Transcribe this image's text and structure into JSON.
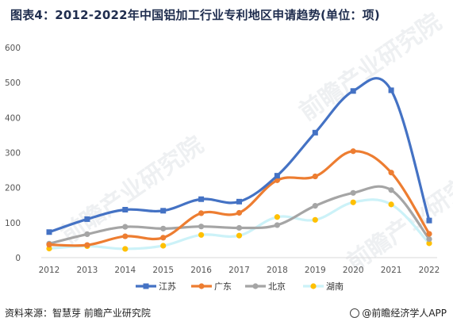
{
  "title": "图表4：2012-2022年中国铝加工行业专利地区申请趋势(单位：项)",
  "source": "资料来源：智慧芽 前瞻产业研究院",
  "brand": "@前瞻经济学人APP",
  "watermark": "前瞻产业研究院",
  "chart_data": {
    "type": "line",
    "title": "图表4：2012-2022年中国铝加工行业专利地区申请趋势(单位：项)",
    "categories": [
      "2012",
      "2013",
      "2014",
      "2015",
      "2016",
      "2017",
      "2018",
      "2019",
      "2020",
      "2021",
      "2022"
    ],
    "ylim": [
      0,
      600
    ],
    "yticks": [
      0,
      100,
      200,
      300,
      400,
      500,
      600
    ],
    "grid": false,
    "legend_position": "bottom",
    "smooth": true,
    "series": [
      {
        "name": "江苏",
        "color": "#4472c4",
        "marker": "square",
        "values": [
          73,
          110,
          137,
          134,
          167,
          160,
          234,
          357,
          476,
          478,
          106
        ]
      },
      {
        "name": "广东",
        "color": "#ed7d31",
        "marker": "circle",
        "values": [
          37,
          36,
          61,
          57,
          127,
          128,
          221,
          232,
          304,
          243,
          68
        ]
      },
      {
        "name": "北京",
        "color": "#a5a5a5",
        "marker": "circle",
        "values": [
          40,
          67,
          88,
          83,
          89,
          85,
          93,
          148,
          185,
          193,
          53
        ]
      },
      {
        "name": "湖南",
        "color": "#ffc000",
        "marker": "circle",
        "line_color": "#ccf2f8",
        "values": [
          26,
          33,
          25,
          34,
          65,
          63,
          116,
          108,
          158,
          152,
          41
        ]
      }
    ]
  }
}
